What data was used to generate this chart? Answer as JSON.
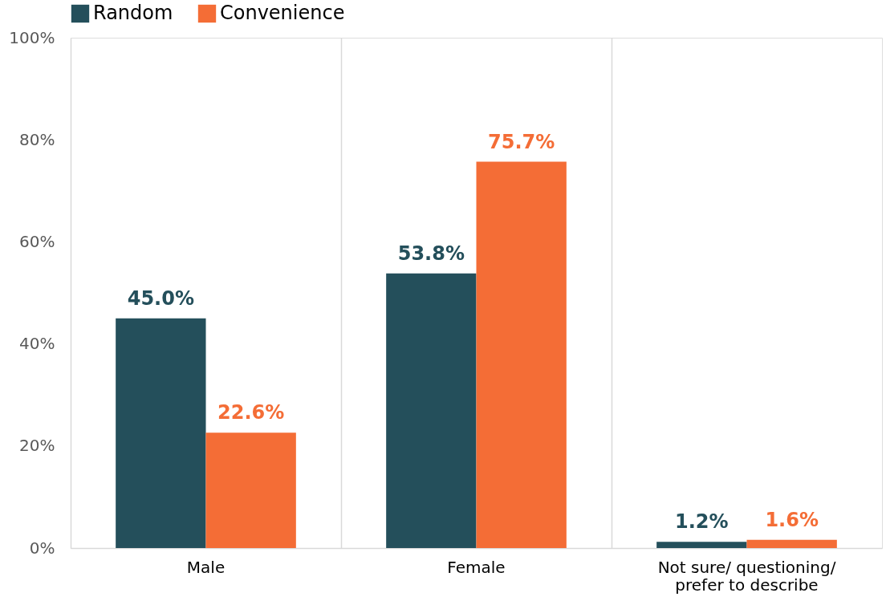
{
  "chart_data": {
    "type": "bar",
    "categories": [
      "Male",
      "Female",
      "Not sure/ questioning/ prefer to describe"
    ],
    "series": [
      {
        "name": "Random",
        "color": "#244f5b",
        "values": [
          45.0,
          53.8,
          1.2
        ],
        "value_labels": [
          "45.0%",
          "53.8%",
          "1.2%"
        ]
      },
      {
        "name": "Convenience",
        "color": "#f46d36",
        "values": [
          22.6,
          75.7,
          1.6
        ],
        "value_labels": [
          "22.6%",
          "75.7%",
          "1.6%"
        ]
      }
    ],
    "ylim": [
      0,
      100
    ],
    "yticks": [
      {
        "value": 0,
        "label": "0%"
      },
      {
        "value": 20,
        "label": "20%"
      },
      {
        "value": 40,
        "label": "40%"
      },
      {
        "value": 60,
        "label": "60%"
      },
      {
        "value": 80,
        "label": "80%"
      },
      {
        "value": 100,
        "label": "100%"
      }
    ],
    "grid": "x",
    "legend": "top"
  }
}
